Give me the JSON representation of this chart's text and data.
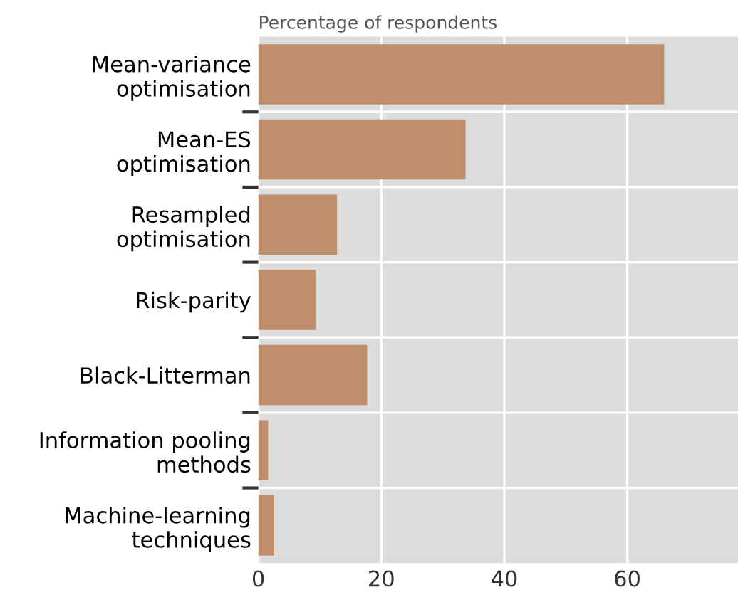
{
  "chart_data": {
    "type": "bar",
    "orientation": "horizontal",
    "xlabel": "Percentage of respondents",
    "categories": [
      "Mean-variance\noptimisation",
      "Mean-ES\noptimisation",
      "Resampled\noptimisation",
      "Risk-parity",
      "Black-Litterman",
      "Information pooling\nmethods",
      "Machine-learning\ntechniques"
    ],
    "values": [
      66,
      33.7,
      12.8,
      9.3,
      17.7,
      1.6,
      2.6
    ],
    "color": "#c08e6a",
    "xlim": [
      0,
      78
    ],
    "xticks": [
      0,
      20,
      40,
      60
    ],
    "grid": "x"
  }
}
